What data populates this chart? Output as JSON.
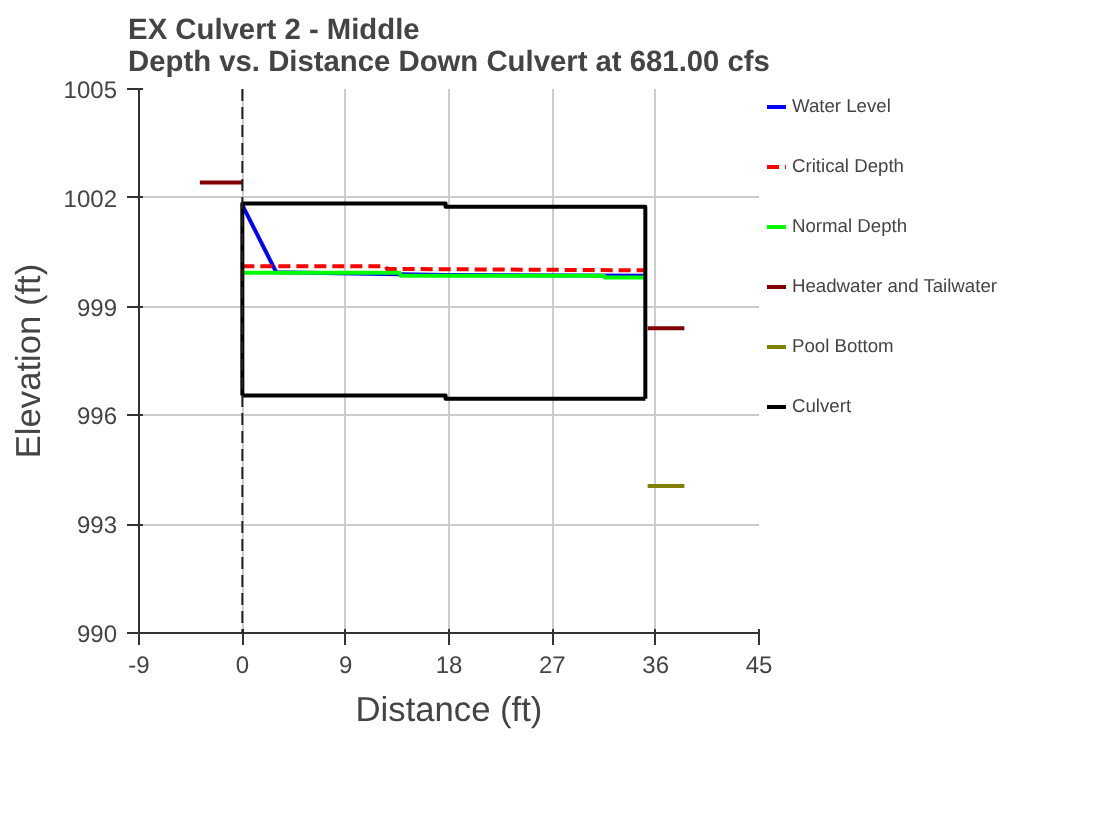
{
  "chart_data": {
    "type": "line",
    "title": "EX Culvert 2 - Middle\nDepth vs. Distance Down Culvert at 681.00 cfs",
    "xlabel": "Distance (ft)",
    "ylabel": "Elevation (ft)",
    "xlim": [
      -9,
      45
    ],
    "xticks": [
      -9,
      0,
      9,
      18,
      27,
      36,
      45
    ],
    "ylim": [
      990,
      1005
    ],
    "yticks": [
      990,
      993,
      996,
      999,
      1002,
      1005
    ],
    "grid": true,
    "legend": "right",
    "series": [
      {
        "name": "Water Level",
        "color": "#0000ff",
        "x": [
          0,
          2.95,
          17.7,
          35.1
        ],
        "values": [
          1001.8,
          999.95,
          999.87,
          999.85
        ]
      },
      {
        "name": "Critical Depth",
        "color": "#ff0000",
        "line_style": "dashed",
        "x": [
          0,
          12.5,
          12.6,
          35.1
        ],
        "values": [
          1000.11,
          1000.11,
          1000.04,
          1000.0
        ]
      },
      {
        "name": "Normal Depth",
        "color": "#00ff00",
        "x": [
          0,
          13.7,
          13.8,
          31.5,
          31.6,
          35.1
        ],
        "values": [
          999.93,
          999.93,
          999.85,
          999.85,
          999.8,
          999.8
        ]
      },
      {
        "name": "Headwater and Tailwater",
        "color": "#800000",
        "x": [
          -3.7,
          0,
          null,
          35.3,
          38.5
        ],
        "values": [
          1002.42,
          1002.42,
          null,
          998.4,
          998.4
        ]
      },
      {
        "name": "Pool Bottom",
        "color": "#808000",
        "x": [
          35.3,
          38.5
        ],
        "values": [
          994.05,
          994.05
        ]
      },
      {
        "name": "Culvert",
        "color": "#000000",
        "x": [
          0,
          0,
          17.7,
          17.7,
          35.1,
          35.1,
          null,
          0,
          17.7,
          17.7,
          35.1
        ],
        "values": [
          996.55,
          1001.84,
          1001.84,
          1001.75,
          1001.75,
          996.46,
          null,
          996.55,
          996.55,
          996.46,
          996.46
        ]
      }
    ],
    "ref_lines": [
      {
        "axis": "x",
        "value": 0,
        "color": "#222222",
        "line_style": "dashed"
      }
    ]
  }
}
